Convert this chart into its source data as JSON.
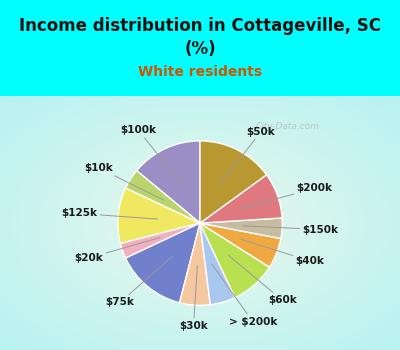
{
  "title": "Income distribution in Cottageville, SC\n(%)",
  "subtitle": "White residents",
  "bg_cyan": "#00FFFF",
  "labels": [
    "$100k",
    "$10k",
    "$125k",
    "$20k",
    "$75k",
    "$30k",
    "> $200k",
    "$60k",
    "$40k",
    "$150k",
    "$200k",
    "$50k"
  ],
  "sizes": [
    14,
    4,
    11,
    3,
    14,
    6,
    5,
    9,
    6,
    4,
    9,
    15
  ],
  "colors": [
    "#9b8ec4",
    "#b8d46a",
    "#f0e860",
    "#f0b0c0",
    "#7080cc",
    "#f5c8a0",
    "#a8c8f0",
    "#b8e050",
    "#f0a840",
    "#c8bca0",
    "#e07880",
    "#b89830"
  ],
  "startangle": 90,
  "label_fontsize": 7.5,
  "title_fontsize": 12,
  "subtitle_fontsize": 10,
  "title_color": "#111111",
  "subtitle_color": "#cc5500",
  "watermark": "City-Data.com",
  "watermark_color": "#aaaaaa"
}
